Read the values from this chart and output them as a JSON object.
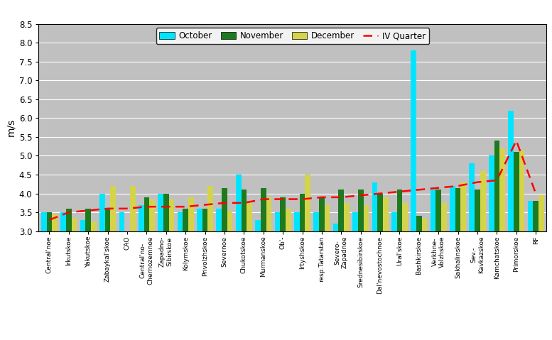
{
  "categories": [
    "Central'noe",
    "Irkutskoe",
    "Yakutskoe",
    "Zabaykal'skoe",
    "CAO",
    "Central'no-\nChernozemnoe",
    "Zapadno-\nSibirskoe",
    "Kolymskoe",
    "Privolzhskoe",
    "Severnoe",
    "Chukotskoe",
    "Murmanskoe",
    "Ob'-",
    "Irtyshskoe",
    "resp.Tatarstan",
    "Severo-\nZapadnoe",
    "Srednesibirskoe",
    "Dal'nevostochnoe",
    "Ural'skoe",
    "Bashkirskoe",
    "Verkhne-\nVolzhskoe",
    "Sakhalinskoe",
    "Sev.-\nKavkazskoe",
    "Kamchatskoe",
    "Primorskoe",
    "RF"
  ],
  "october": [
    3.5,
    3.5,
    3.3,
    4.0,
    3.5,
    3.7,
    4.0,
    3.5,
    3.6,
    3.6,
    4.5,
    3.3,
    3.5,
    3.5,
    3.5,
    3.2,
    3.5,
    4.3,
    3.5,
    7.8,
    4.1,
    4.2,
    4.8,
    5.0,
    6.2,
    3.8
  ],
  "november": [
    3.5,
    3.6,
    3.6,
    3.6,
    3.0,
    3.9,
    4.0,
    3.6,
    3.6,
    4.15,
    4.1,
    4.15,
    3.9,
    4.0,
    3.9,
    4.1,
    4.1,
    4.0,
    4.1,
    3.4,
    4.1,
    4.15,
    4.1,
    5.4,
    5.1,
    3.8
  ],
  "december": [
    3.45,
    3.35,
    3.25,
    4.2,
    4.2,
    3.85,
    3.85,
    3.9,
    4.2,
    3.55,
    3.75,
    3.9,
    3.6,
    4.5,
    3.7,
    3.75,
    3.7,
    3.9,
    3.75,
    3.35,
    3.75,
    4.3,
    4.6,
    5.2,
    5.15,
    3.95
  ],
  "iv_quarter": [
    3.3,
    3.5,
    3.55,
    3.6,
    3.6,
    3.65,
    3.65,
    3.65,
    3.7,
    3.75,
    3.75,
    3.85,
    3.85,
    3.85,
    3.9,
    3.9,
    3.95,
    4.0,
    4.05,
    4.1,
    4.15,
    4.2,
    4.3,
    4.35,
    5.4,
    4.0
  ],
  "bar_color_october": "#00e5ff",
  "bar_color_november": "#1e7a1e",
  "bar_color_december": "#d4d44a",
  "line_color_iv": "#ff0000",
  "ylabel": "m/s",
  "ymin": 3.0,
  "ymax": 8.5,
  "yticks": [
    3.0,
    3.5,
    4.0,
    4.5,
    5.0,
    5.5,
    6.0,
    6.5,
    7.0,
    7.5,
    8.0,
    8.5
  ],
  "background_color": "#c0c0c0",
  "legend_labels": [
    "October",
    "November",
    "December",
    "IV Quarter"
  ]
}
